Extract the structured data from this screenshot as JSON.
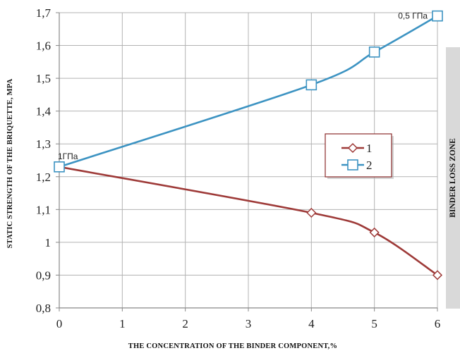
{
  "chart_data": {
    "type": "line",
    "xlabel": "THE CONCENTRATION OF THE BINDER COMPONENT,%",
    "ylabel": "STATIC STRENGTH OF THE BRIQUETTE, MPA",
    "xlim": [
      0,
      6
    ],
    "ylim": [
      0.8,
      1.7
    ],
    "x_ticks": [
      0,
      1,
      2,
      3,
      4,
      5,
      6
    ],
    "y_ticks": [
      0.8,
      0.9,
      1.0,
      1.1,
      1.2,
      1.3,
      1.4,
      1.5,
      1.6,
      1.7
    ],
    "y_tick_labels": [
      "0,8",
      "0,9",
      "1",
      "1,1",
      "1,2",
      "1,3",
      "1,4",
      "1,5",
      "1,6",
      "1,7"
    ],
    "x_tick_labels": [
      "0",
      "1",
      "2",
      "3",
      "4",
      "5",
      "6"
    ],
    "grid": true,
    "legend_position": "center-right",
    "series": [
      {
        "name": "1",
        "color": "#9e3a38",
        "marker": "diamond",
        "x": [
          0,
          4,
          5,
          6
        ],
        "y": [
          1.23,
          1.09,
          1.03,
          0.9
        ]
      },
      {
        "name": "2",
        "color": "#3c93c2",
        "marker": "square",
        "x": [
          0,
          4,
          5,
          6
        ],
        "y": [
          1.23,
          1.48,
          1.58,
          1.69
        ]
      }
    ],
    "annotations": [
      {
        "text": "1ГПа",
        "x": 0,
        "y": 1.23
      },
      {
        "text": "0,5 ГПа",
        "x": 6,
        "y": 1.69
      }
    ],
    "zone_label": "BINDER LOSS ZONE",
    "zone_fill": "#d9d9d9"
  }
}
